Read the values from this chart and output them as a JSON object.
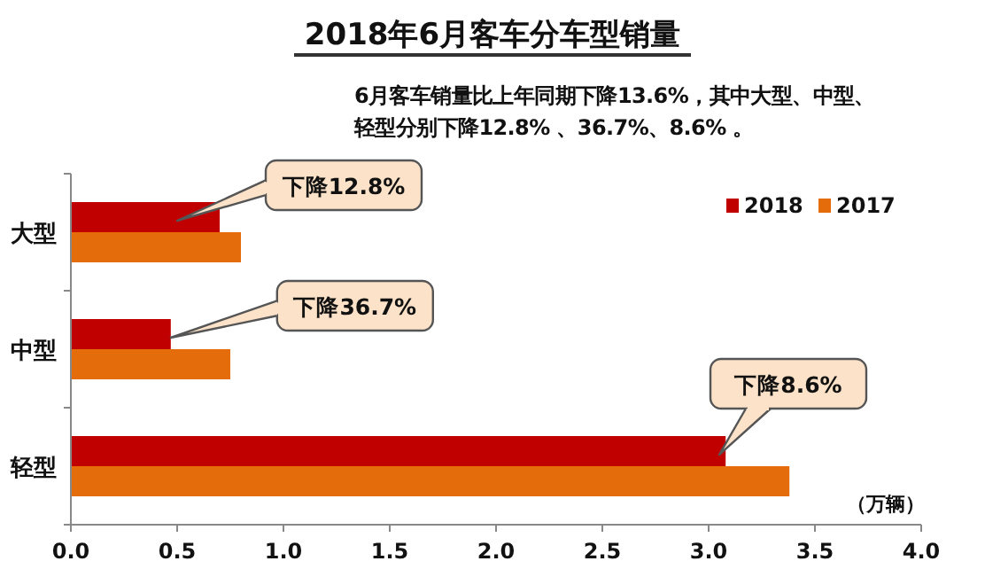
{
  "chart_data": {
    "type": "bar",
    "orientation": "horizontal",
    "title": "2018年6月客车分车型销量",
    "subtitle": "6月客车销量比上年同期下降13.6%，其中大型、中型、轻型分别下降12.8% 、36.7%、8.6% 。",
    "xlabel": "（万辆）",
    "categories": [
      "大型",
      "中型",
      "轻型"
    ],
    "series": [
      {
        "name": "2018",
        "color": "#c00000",
        "values": [
          0.7,
          0.47,
          3.08
        ]
      },
      {
        "name": "2017",
        "color": "#e46c0a",
        "values": [
          0.8,
          0.75,
          3.38
        ]
      }
    ],
    "xlim": [
      0,
      4
    ],
    "xticks": [
      {
        "value": 0,
        "label": "0.0"
      },
      {
        "value": 0.5,
        "label": "0.5"
      },
      {
        "value": 1,
        "label": "1.0"
      },
      {
        "value": 1.5,
        "label": "1.5"
      },
      {
        "value": 2,
        "label": "2.0"
      },
      {
        "value": 2.5,
        "label": "2.5"
      },
      {
        "value": 3,
        "label": "3.0"
      },
      {
        "value": 3.5,
        "label": "3.5"
      },
      {
        "value": 4,
        "label": "4.0"
      }
    ],
    "legend": "top right",
    "annotations": [
      "下降12.8%",
      "下降36.7%",
      "下降8.6%"
    ]
  }
}
